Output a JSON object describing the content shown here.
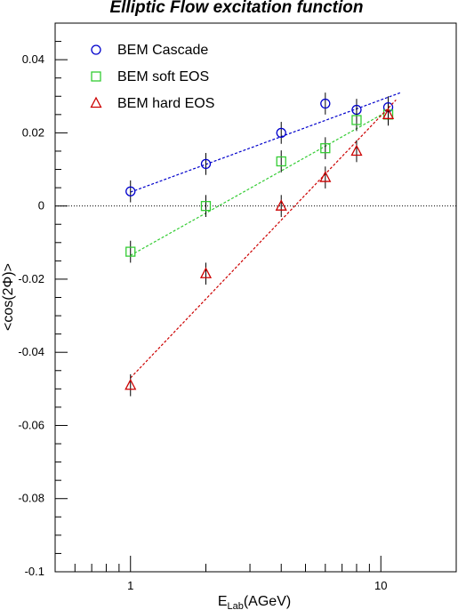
{
  "chart_data": {
    "type": "scatter",
    "title": "Elliptic Flow excitation function",
    "xlabel": {
      "main": "E",
      "sub": "Lab",
      "rest": "(AGeV)"
    },
    "ylabel": "<cos(2Φ)>",
    "x_scale": "log",
    "xlim": [
      0.5,
      20
    ],
    "ylim": [
      -0.1,
      0.05
    ],
    "x_ticks": [
      1,
      10
    ],
    "x_tick_labels": [
      "1",
      "10"
    ],
    "y_ticks": [
      -0.1,
      -0.08,
      -0.06,
      -0.04,
      -0.02,
      0,
      0.02,
      0.04
    ],
    "y_tick_labels": [
      "-0.1",
      "-0.08",
      "-0.06",
      "-0.04",
      "-0.02",
      "0",
      "0.02",
      "0.04"
    ],
    "zero_line": true,
    "legend_position": "top-left",
    "series": [
      {
        "name": "BEM Cascade",
        "marker": "circle",
        "color": "#0000cc",
        "x": [
          1,
          2,
          4,
          6,
          8,
          10.7
        ],
        "y": [
          0.004,
          0.0115,
          0.02,
          0.028,
          0.0263,
          0.027
        ],
        "err": [
          0.003,
          0.003,
          0.003,
          0.003,
          0.003,
          0.003
        ],
        "fit": {
          "x": [
            1,
            12
          ],
          "y": [
            0.0038,
            0.031
          ]
        }
      },
      {
        "name": "BEM soft EOS",
        "marker": "square",
        "color": "#33cc33",
        "x": [
          1,
          2,
          4,
          6,
          8,
          10.7
        ],
        "y": [
          -0.0125,
          0.0,
          0.0122,
          0.0158,
          0.0235,
          0.025
        ],
        "err": [
          0.003,
          0.003,
          0.003,
          0.003,
          0.003,
          0.003
        ],
        "fit": {
          "x": [
            1,
            10.7
          ],
          "y": [
            -0.0135,
            0.026
          ]
        }
      },
      {
        "name": "BEM hard EOS",
        "marker": "triangle",
        "color": "#cc0000",
        "x": [
          1,
          2,
          4,
          6,
          8,
          10.7
        ],
        "y": [
          -0.049,
          -0.0185,
          0.0,
          0.0078,
          0.015,
          0.025
        ],
        "err": [
          0.003,
          0.003,
          0.003,
          0.003,
          0.003,
          0.003
        ],
        "fit": {
          "x": [
            1,
            11.5
          ],
          "y": [
            -0.047,
            0.029
          ]
        }
      }
    ]
  }
}
